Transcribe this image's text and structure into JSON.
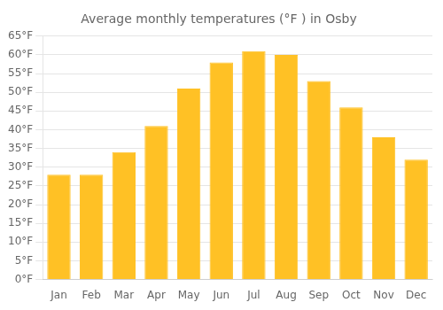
{
  "chart_data": {
    "type": "bar",
    "title": "Average monthly temperatures (°F ) in Osby",
    "categories": [
      "Jan",
      "Feb",
      "Mar",
      "Apr",
      "May",
      "Jun",
      "Jul",
      "Aug",
      "Sep",
      "Oct",
      "Nov",
      "Dec"
    ],
    "values": [
      28,
      28,
      34,
      41,
      51,
      58,
      61,
      60,
      53,
      46,
      38,
      32
    ],
    "color": "#FFC125",
    "ylim": [
      0,
      65
    ],
    "yticks": [
      {
        "value": 0,
        "label": "0°F"
      },
      {
        "value": 5,
        "label": "5°F"
      },
      {
        "value": 10,
        "label": "10°F"
      },
      {
        "value": 15,
        "label": "15°F"
      },
      {
        "value": 20,
        "label": "20°F"
      },
      {
        "value": 25,
        "label": "25°F"
      },
      {
        "value": 30,
        "label": "30°F"
      },
      {
        "value": 35,
        "label": "35°F"
      },
      {
        "value": 40,
        "label": "40°F"
      },
      {
        "value": 45,
        "label": "45°F"
      },
      {
        "value": 50,
        "label": "50°F"
      },
      {
        "value": 55,
        "label": "55°F"
      },
      {
        "value": 60,
        "label": "60°F"
      },
      {
        "value": 65,
        "label": "65°F"
      }
    ],
    "grid": true
  }
}
